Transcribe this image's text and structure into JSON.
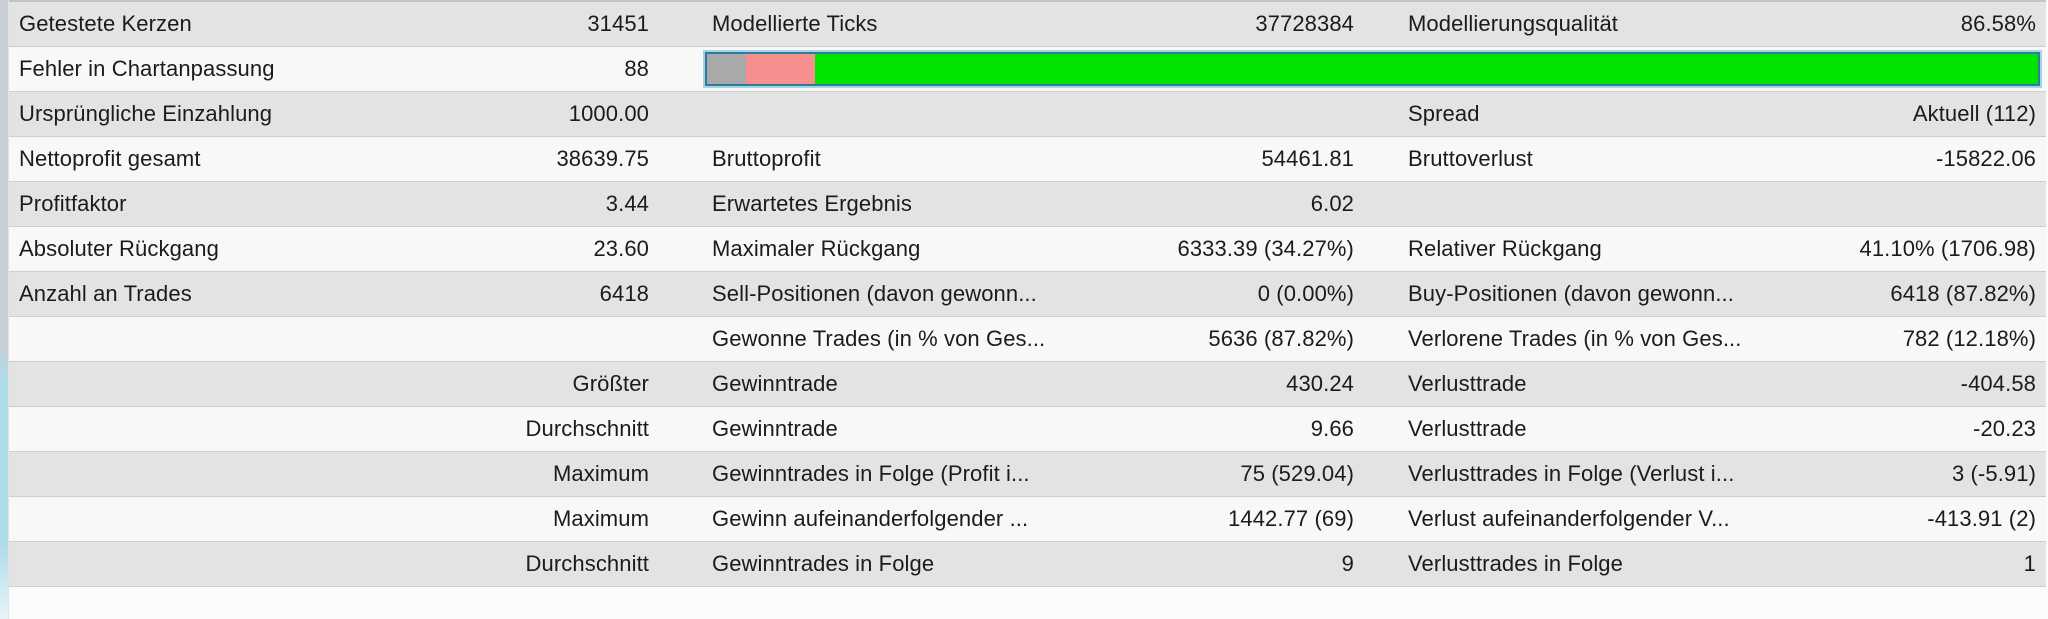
{
  "app_context": "strategy-tester-backtest-report",
  "colors": {
    "row_shade": "#e3e3e3",
    "row_plain": "#f8f8f8",
    "text": "#1b1b1b",
    "bar_border": "#2f7d9d",
    "bar_outer_glow": "#a5d4e2"
  },
  "progress_bar": {
    "description": "modelling-quality-bar",
    "segments": [
      {
        "name": "unmodelled",
        "color": "#a9a9a9",
        "percent": 2.9
      },
      {
        "name": "partially-modelled",
        "color": "#f78f8f",
        "percent": 5.2
      },
      {
        "name": "modelled",
        "color": "#00e400",
        "percent": 91.9
      }
    ]
  },
  "table": {
    "rows": [
      {
        "shade": true,
        "cells": [
          {
            "label": "Getestete Kerzen",
            "value": "31451"
          },
          {
            "label": "Modellierte Ticks",
            "value": "37728384"
          },
          {
            "label": "Modellierungsqualität",
            "value": "86.58%"
          }
        ]
      },
      {
        "shade": false,
        "has_bar": true,
        "cells": [
          {
            "label": "Fehler in Chartanpassung",
            "value": "88"
          }
        ]
      },
      {
        "shade": true,
        "cells": [
          {
            "label": "Ursprüngliche Einzahlung",
            "value": "1000.00"
          },
          {
            "label": "",
            "value": ""
          },
          {
            "label": "Spread",
            "value": "Aktuell (112)"
          }
        ]
      },
      {
        "shade": false,
        "cells": [
          {
            "label": "Nettoprofit gesamt",
            "value": "38639.75"
          },
          {
            "label": "Bruttoprofit",
            "value": "54461.81"
          },
          {
            "label": "Bruttoverlust",
            "value": "-15822.06"
          }
        ]
      },
      {
        "shade": true,
        "cells": [
          {
            "label": "Profitfaktor",
            "value": "3.44"
          },
          {
            "label": "Erwartetes Ergebnis",
            "value": "6.02"
          },
          {
            "label": "",
            "value": ""
          }
        ]
      },
      {
        "shade": false,
        "cells": [
          {
            "label": "Absoluter Rückgang",
            "value": "23.60"
          },
          {
            "label": "Maximaler Rückgang",
            "value": "6333.39 (34.27%)"
          },
          {
            "label": "Relativer Rückgang",
            "value": "41.10% (1706.98)"
          }
        ]
      },
      {
        "shade": true,
        "cells": [
          {
            "label": "Anzahl an Trades",
            "value": "6418"
          },
          {
            "label": "Sell-Positionen (davon gewonn...",
            "value": "0 (0.00%)"
          },
          {
            "label": "Buy-Positionen (davon gewonn...",
            "value": "6418 (87.82%)"
          }
        ]
      },
      {
        "shade": false,
        "cells": [
          {
            "label": "",
            "value": ""
          },
          {
            "label": "Gewonne Trades (in % von Ges...",
            "value": "5636 (87.82%)"
          },
          {
            "label": "Verlorene Trades (in % von Ges...",
            "value": "782 (12.18%)"
          }
        ]
      },
      {
        "shade": true,
        "cells": [
          {
            "label": "",
            "value": "Größter"
          },
          {
            "label": "Gewinntrade",
            "value": "430.24"
          },
          {
            "label": "Verlusttrade",
            "value": "-404.58"
          }
        ]
      },
      {
        "shade": false,
        "cells": [
          {
            "label": "",
            "value": "Durchschnitt"
          },
          {
            "label": "Gewinntrade",
            "value": "9.66"
          },
          {
            "label": "Verlusttrade",
            "value": "-20.23"
          }
        ]
      },
      {
        "shade": true,
        "cells": [
          {
            "label": "",
            "value": "Maximum"
          },
          {
            "label": "Gewinntrades in Folge (Profit i...",
            "value": "75 (529.04)"
          },
          {
            "label": "Verlusttrades in Folge (Verlust i...",
            "value": "3 (-5.91)"
          }
        ]
      },
      {
        "shade": false,
        "cells": [
          {
            "label": "",
            "value": "Maximum"
          },
          {
            "label": "Gewinn aufeinanderfolgender ...",
            "value": "1442.77 (69)"
          },
          {
            "label": "Verlust aufeinanderfolgender V...",
            "value": "-413.91 (2)"
          }
        ]
      },
      {
        "shade": true,
        "cells": [
          {
            "label": "",
            "value": "Durchschnitt"
          },
          {
            "label": "Gewinntrades in Folge",
            "value": "9"
          },
          {
            "label": "Verlusttrades in Folge",
            "value": "1"
          }
        ]
      }
    ]
  }
}
